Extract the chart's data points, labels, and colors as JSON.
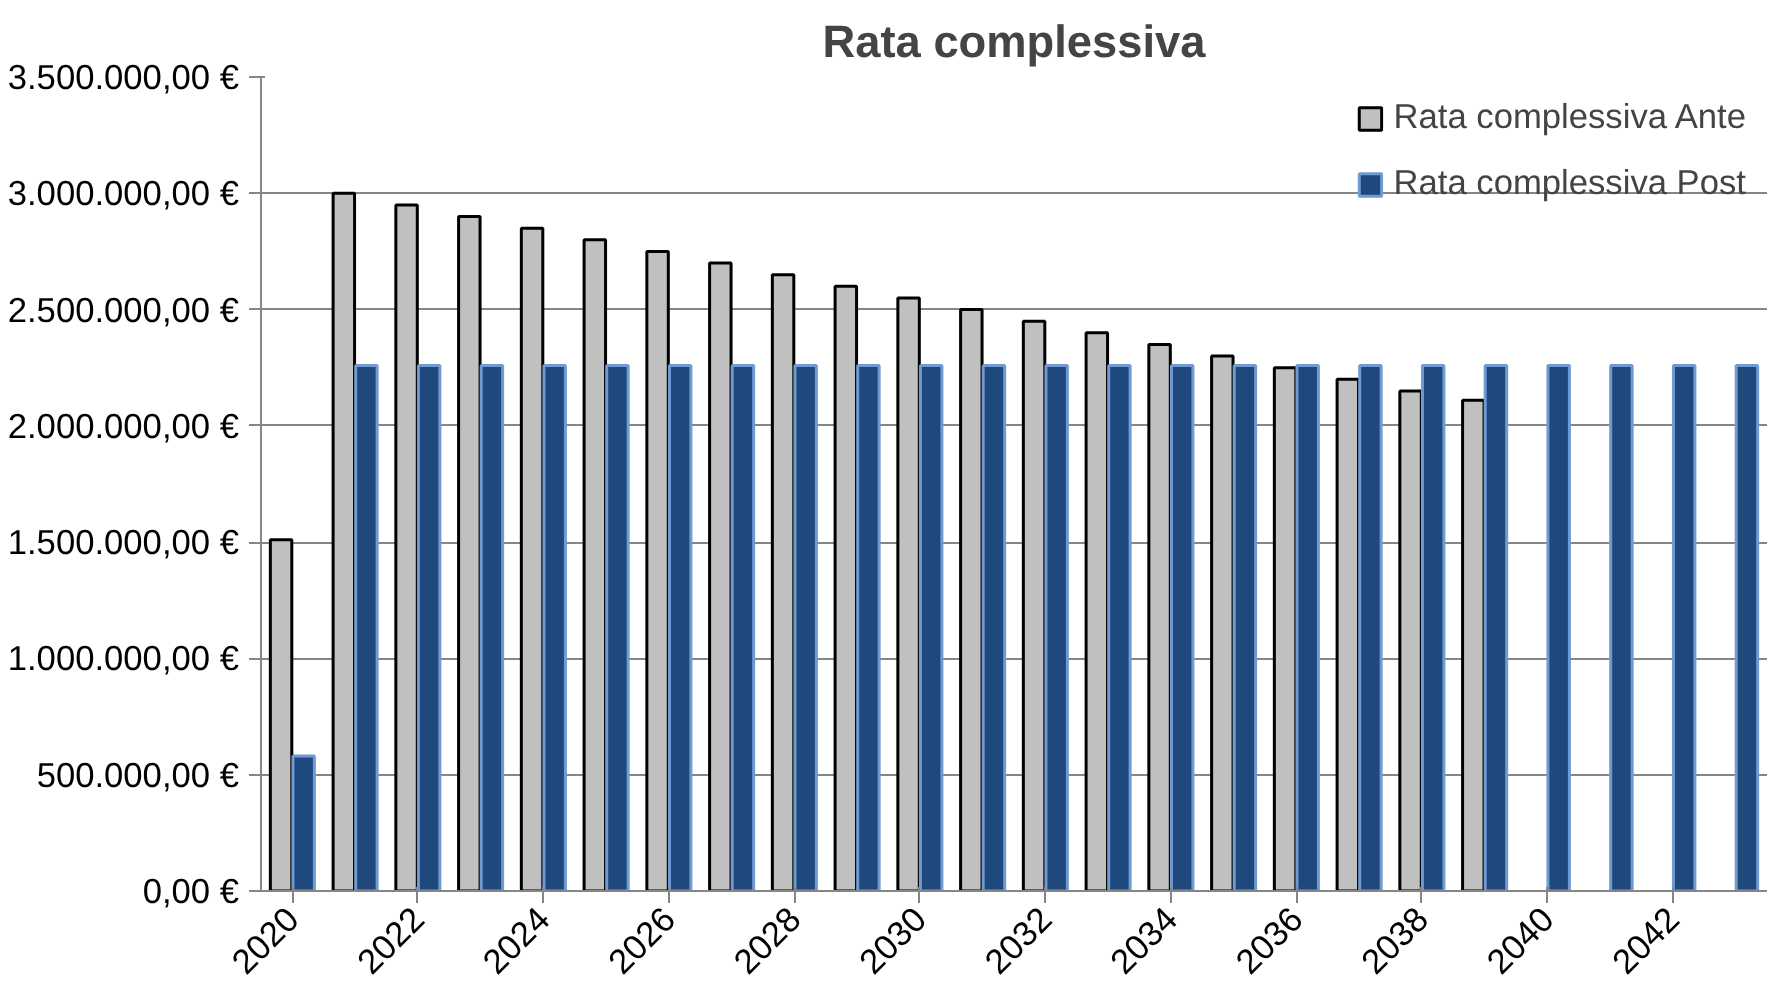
{
  "chart_data": {
    "type": "bar",
    "title": "Rata complessiva",
    "categories": [
      "2020",
      null,
      "2022",
      null,
      "2024",
      null,
      "2026",
      null,
      "2028",
      null,
      "2030",
      null,
      "2032",
      null,
      "2034",
      null,
      "2036",
      null,
      "2038",
      null,
      "2040",
      null,
      "2042",
      null
    ],
    "series": [
      {
        "name": "Rata complessiva Ante",
        "color": "#c0c0c0",
        "values": [
          1510000,
          3000000,
          2950000,
          2900000,
          2850000,
          2800000,
          2750000,
          2700000,
          2650000,
          2600000,
          2550000,
          2500000,
          2450000,
          2400000,
          2350000,
          2300000,
          2250000,
          2200000,
          2150000,
          2110000,
          null,
          null,
          null,
          null
        ]
      },
      {
        "name": "Rata complessiva Post",
        "color": "#1f497d",
        "values": [
          580000,
          2260000,
          2260000,
          2260000,
          2260000,
          2260000,
          2260000,
          2260000,
          2260000,
          2260000,
          2260000,
          2260000,
          2260000,
          2260000,
          2260000,
          2260000,
          2260000,
          2260000,
          2260000,
          2260000,
          2260000,
          2260000,
          2260000,
          2260000
        ]
      }
    ],
    "ylim": [
      0,
      3500000
    ],
    "yticks": [
      {
        "value": 0,
        "label": "0,00 €"
      },
      {
        "value": 500000,
        "label": "500.000,00 €"
      },
      {
        "value": 1000000,
        "label": "1.000.000,00 €"
      },
      {
        "value": 1500000,
        "label": "1.500.000,00 €"
      },
      {
        "value": 2000000,
        "label": "2.000.000,00 €"
      },
      {
        "value": 2500000,
        "label": "2.500.000,00 €"
      },
      {
        "value": 3000000,
        "label": "3.000.000,00 €"
      },
      {
        "value": 3500000,
        "label": "3.500.000,00 €"
      }
    ],
    "grid": "y",
    "legend": "top right"
  }
}
